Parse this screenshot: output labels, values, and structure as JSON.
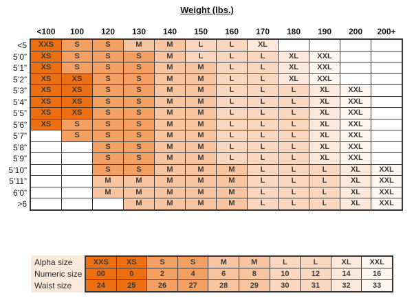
{
  "title": "Weight (lbs.)",
  "colors": {
    "XXS": "#ED6F12",
    "XS": "#ED6F12",
    "S": "#F5A063",
    "M": "#F8C5A0",
    "L": "#FAD7BE",
    "XL": "#FCE9DB",
    "XXL": "#FEF6EF",
    "blank": "#FFFFFF",
    "label_bg": "#FBE9DB",
    "grid_line": "#3B3B3B"
  },
  "chart_data": [
    {
      "type": "table",
      "title": "Weight (lbs.)",
      "description": "Size lookup by height (rows) and weight in lbs (columns)",
      "columns": [
        "<100",
        "100",
        "120",
        "130",
        "140",
        "150",
        "160",
        "170",
        "180",
        "190",
        "200",
        "200+"
      ],
      "row_labels": [
        "<5",
        "5’0”",
        "5’1”",
        "5’2”",
        "5’3”",
        "5’4”",
        "5’5”",
        "5’6”",
        "5’7”",
        "5’8”",
        "5’9”",
        "5’10”",
        "5’11”",
        "6’0”",
        ">6"
      ],
      "rows": [
        [
          "XXS",
          "S",
          "S",
          "M",
          "M",
          "L",
          "L",
          "XL",
          "",
          "",
          "",
          ""
        ],
        [
          "XS",
          "S",
          "S",
          "S",
          "M",
          "L",
          "L",
          "L",
          "XL",
          "XXL",
          "",
          ""
        ],
        [
          "XS",
          "S",
          "S",
          "S",
          "M",
          "M",
          "L",
          "L",
          "XL",
          "XXL",
          "",
          ""
        ],
        [
          "XS",
          "XS",
          "S",
          "S",
          "M",
          "M",
          "L",
          "L",
          "XL",
          "XXL",
          "",
          ""
        ],
        [
          "XS",
          "XS",
          "S",
          "S",
          "M",
          "M",
          "L",
          "L",
          "L",
          "XL",
          "XXL",
          ""
        ],
        [
          "XS",
          "XS",
          "S",
          "S",
          "M",
          "M",
          "L",
          "L",
          "L",
          "XL",
          "XXL",
          ""
        ],
        [
          "XS",
          "XS",
          "S",
          "S",
          "M",
          "M",
          "L",
          "L",
          "L",
          "XL",
          "XXL",
          ""
        ],
        [
          "XS",
          "S",
          "S",
          "S",
          "M",
          "M",
          "L",
          "L",
          "L",
          "XL",
          "XXL",
          ""
        ],
        [
          "",
          "S",
          "S",
          "S",
          "M",
          "M",
          "L",
          "L",
          "L",
          "XL",
          "XXL",
          ""
        ],
        [
          "",
          "",
          "S",
          "S",
          "M",
          "M",
          "L",
          "L",
          "L",
          "XL",
          "XXL",
          ""
        ],
        [
          "",
          "",
          "S",
          "S",
          "M",
          "M",
          "L",
          "L",
          "L",
          "XL",
          "XXL",
          ""
        ],
        [
          "",
          "",
          "S",
          "S",
          "M",
          "M",
          "M",
          "L",
          "L",
          "L",
          "XL",
          "XXL"
        ],
        [
          "",
          "",
          "M",
          "M",
          "M",
          "M",
          "M",
          "L",
          "L",
          "L",
          "XL",
          "XXL"
        ],
        [
          "",
          "",
          "M",
          "M",
          "M",
          "M",
          "M",
          "L",
          "L",
          "L",
          "XL",
          "XXL"
        ],
        [
          "",
          "",
          "",
          "M",
          "M",
          "M",
          "M",
          "L",
          "L",
          "L",
          "XL",
          "XXL"
        ]
      ]
    },
    {
      "type": "table",
      "description": "Size key: alpha size to numeric and waist size",
      "row_labels": [
        "Alpha size",
        "Numeric size",
        "Waist size"
      ],
      "rows": [
        [
          "XXS",
          "XS",
          "S",
          "S",
          "M",
          "M",
          "L",
          "L",
          "XL",
          "XXL"
        ],
        [
          "00",
          "0",
          "2",
          "4",
          "6",
          "8",
          "10",
          "12",
          "14",
          "16"
        ],
        [
          "24",
          "25",
          "26",
          "27",
          "28",
          "29",
          "30",
          "31",
          "32",
          "33"
        ]
      ]
    }
  ]
}
